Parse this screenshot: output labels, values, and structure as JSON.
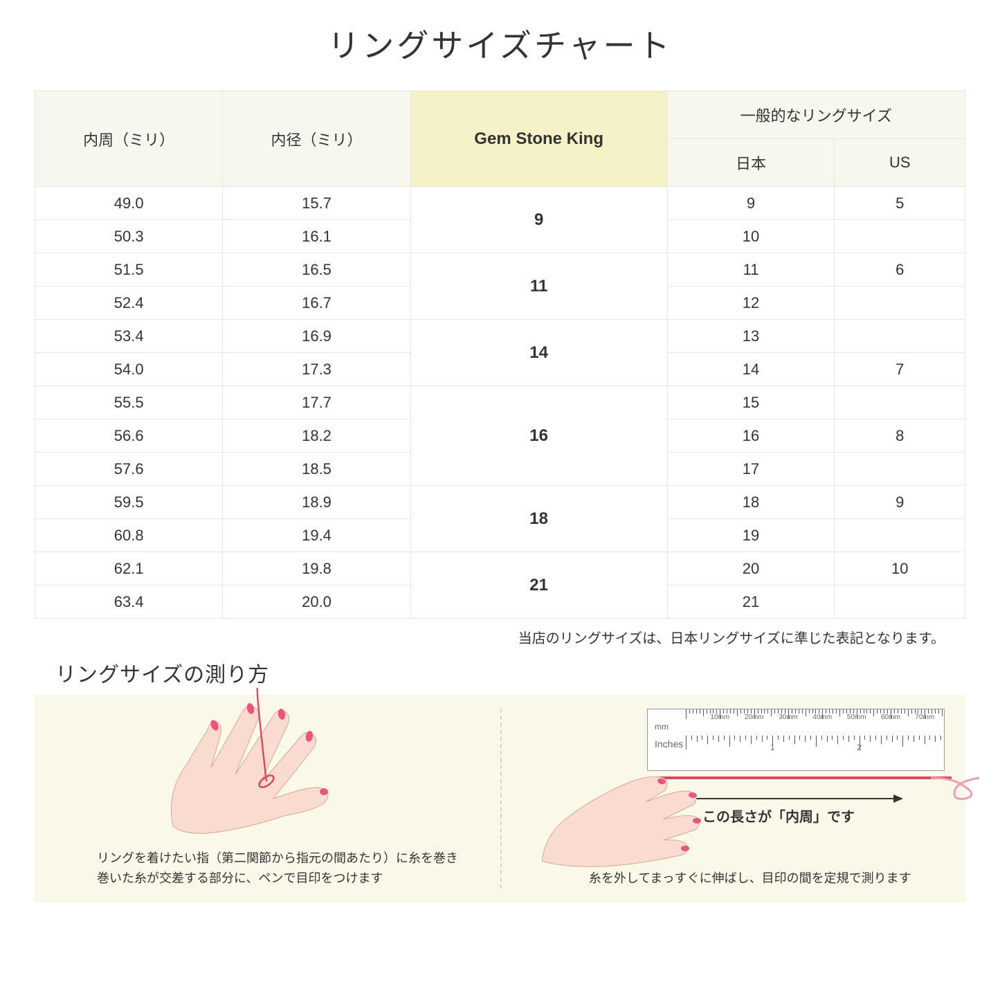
{
  "title": "リングサイズチャート",
  "table": {
    "headers": {
      "circumference": "内周（ミリ）",
      "diameter": "内径（ミリ）",
      "gsk": "Gem Stone King",
      "general": "一般的なリングサイズ",
      "japan": "日本",
      "us": "US"
    },
    "header_bg": "#f7f6ef",
    "highlight_bg": "#f5f2c8",
    "border_color": "#e8e5dc",
    "font_size": 22,
    "groups": [
      {
        "gsk": "9",
        "rows": [
          {
            "circ": "49.0",
            "dia": "15.7",
            "jp": "9",
            "us": "5"
          },
          {
            "circ": "50.3",
            "dia": "16.1",
            "jp": "10",
            "us": ""
          }
        ]
      },
      {
        "gsk": "11",
        "rows": [
          {
            "circ": "51.5",
            "dia": "16.5",
            "jp": "11",
            "us": "6"
          },
          {
            "circ": "52.4",
            "dia": "16.7",
            "jp": "12",
            "us": ""
          }
        ]
      },
      {
        "gsk": "14",
        "rows": [
          {
            "circ": "53.4",
            "dia": "16.9",
            "jp": "13",
            "us": ""
          },
          {
            "circ": "54.0",
            "dia": "17.3",
            "jp": "14",
            "us": "7"
          }
        ]
      },
      {
        "gsk": "16",
        "rows": [
          {
            "circ": "55.5",
            "dia": "17.7",
            "jp": "15",
            "us": ""
          },
          {
            "circ": "56.6",
            "dia": "18.2",
            "jp": "16",
            "us": "8"
          },
          {
            "circ": "57.6",
            "dia": "18.5",
            "jp": "17",
            "us": ""
          }
        ]
      },
      {
        "gsk": "18",
        "rows": [
          {
            "circ": "59.5",
            "dia": "18.9",
            "jp": "18",
            "us": "9"
          },
          {
            "circ": "60.8",
            "dia": "19.4",
            "jp": "19",
            "us": ""
          }
        ]
      },
      {
        "gsk": "21",
        "rows": [
          {
            "circ": "62.1",
            "dia": "19.8",
            "jp": "20",
            "us": "10"
          },
          {
            "circ": "63.4",
            "dia": "20.0",
            "jp": "21",
            "us": ""
          }
        ]
      }
    ]
  },
  "footnote": "当店のリングサイズは、日本リングサイズに準じた表記となります。",
  "subtitle": "リングサイズの測り方",
  "instructions": {
    "bg_color": "#faf8e8",
    "left_caption": "リングを着けたい指（第二関節から指元の間あたり）に糸を巻き\n巻いた糸が交差する部分に、ペンで目印をつけます",
    "right_caption": "糸を外してまっすぐに伸ばし、目印の間を定規で測ります",
    "arrow_label": "この長さが「内周」です",
    "hand_skin_color": "#f9dccf",
    "nail_color": "#e8567a",
    "thread_color": "#d94865",
    "ruler": {
      "bg": "#ffffff",
      "mm_label": "mm",
      "in_label": "Inches",
      "mm_ticks": [
        "10mm",
        "20mm",
        "30mm",
        "40mm",
        "50mm",
        "60mm",
        "70mm"
      ],
      "in_ticks": [
        "1",
        "2"
      ]
    }
  }
}
